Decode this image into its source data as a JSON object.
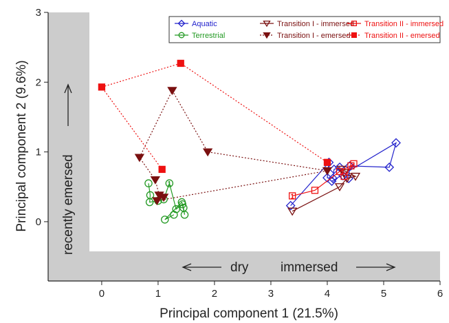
{
  "chart_data": {
    "type": "scatter",
    "xlabel": "Principal component 1 (21.5%)",
    "ylabel": "Principal component 2 (9.6%)",
    "xlim": [
      -0.95,
      6.0
    ],
    "ylim": [
      -0.85,
      3.0
    ],
    "xticks": [
      "0",
      "1",
      "2",
      "3",
      "4",
      "5",
      "6"
    ],
    "yticks": [
      "0",
      "1",
      "2",
      "3"
    ],
    "grid": false,
    "legend_position": "top-right",
    "colors": {
      "aquatic": "#2222cc",
      "terrestrial": "#229922",
      "transition1": "#7a1010",
      "transition2": "#ee1111",
      "shade": "#cccccc"
    },
    "annotations": {
      "dry": "dry",
      "immersed": "immersed",
      "recently_emersed": "recently emersed"
    },
    "series": [
      {
        "name": "Aquatic",
        "marker": "diamond-open",
        "line": "solid",
        "points": [
          [
            3.35,
            0.23
          ],
          [
            4.03,
            0.85
          ],
          [
            4.0,
            0.63
          ],
          [
            4.1,
            0.62
          ],
          [
            4.12,
            0.75
          ],
          [
            4.22,
            0.78
          ],
          [
            4.28,
            0.66
          ],
          [
            4.38,
            0.62
          ],
          [
            4.4,
            0.8
          ],
          [
            5.1,
            0.78
          ],
          [
            5.22,
            1.13
          ],
          [
            4.08,
            0.58
          ]
        ]
      },
      {
        "name": "Terrestrial",
        "marker": "circle-open",
        "line": "solid",
        "points": [
          [
            0.83,
            0.55
          ],
          [
            0.86,
            0.38
          ],
          [
            0.85,
            0.28
          ],
          [
            1.0,
            0.3
          ],
          [
            1.1,
            0.32
          ],
          [
            1.2,
            0.55
          ],
          [
            1.32,
            0.18
          ],
          [
            1.43,
            0.25
          ],
          [
            1.47,
            0.1
          ],
          [
            1.45,
            0.2
          ],
          [
            1.42,
            0.28
          ],
          [
            1.12,
            0.03
          ],
          [
            1.28,
            0.1
          ]
        ]
      },
      {
        "name": "Transition I - immersed",
        "marker": "triangle-down-open",
        "line": "solid",
        "points": [
          [
            3.38,
            0.15
          ],
          [
            4.22,
            0.5
          ],
          [
            4.35,
            0.62
          ],
          [
            4.5,
            0.65
          ],
          [
            4.25,
            0.75
          ],
          [
            4.3,
            0.7
          ]
        ]
      },
      {
        "name": "Transition I - emersed",
        "marker": "triangle-down-filled",
        "line": "dotted",
        "points": [
          [
            1.02,
            0.38
          ],
          [
            0.95,
            0.6
          ],
          [
            0.67,
            0.92
          ],
          [
            1.25,
            1.88
          ],
          [
            1.88,
            1.0
          ],
          [
            4.0,
            0.73
          ],
          [
            0.98,
            0.3
          ],
          [
            1.1,
            0.35
          ]
        ]
      },
      {
        "name": "Transition II - immersed",
        "marker": "square-open",
        "line": "solid",
        "points": [
          [
            3.38,
            0.37
          ],
          [
            3.78,
            0.45
          ],
          [
            4.22,
            0.72
          ],
          [
            4.42,
            0.8
          ],
          [
            4.47,
            0.83
          ],
          [
            4.3,
            0.65
          ]
        ]
      },
      {
        "name": "Transition II - emersed",
        "marker": "square-filled",
        "line": "dotted",
        "points": [
          [
            1.07,
            0.75
          ],
          [
            0.0,
            1.93
          ],
          [
            1.4,
            2.27
          ],
          [
            4.0,
            0.85
          ]
        ]
      }
    ],
    "labels": [
      {
        "text": "1",
        "x": 1.2,
        "y": 0.55,
        "color": "#229922"
      },
      {
        "text": "1",
        "x": 3.38,
        "y": 0.37,
        "color": "#ee1111"
      }
    ]
  }
}
